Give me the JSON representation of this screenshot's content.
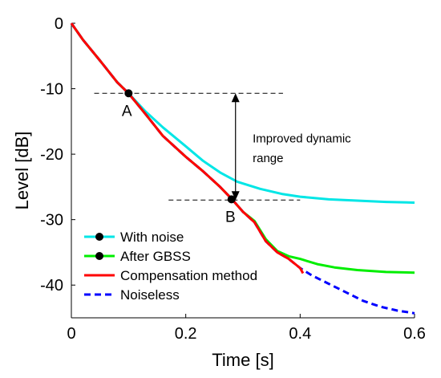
{
  "chart_data": {
    "type": "line",
    "xlabel": "Time [s]",
    "ylabel": "Level [dB]",
    "xlim": [
      0,
      0.6
    ],
    "ylim": [
      -45,
      0
    ],
    "xticks": [
      0,
      0.2,
      0.4,
      0.6
    ],
    "xtick_labels": [
      "0",
      "0.2",
      "0.4",
      "0.6"
    ],
    "yticks": [
      0,
      -10,
      -20,
      -30,
      -40
    ],
    "ytick_labels": [
      "0",
      "-10",
      "-20",
      "-30",
      "-40"
    ],
    "grid": false,
    "legend_position": "bottom-left",
    "series": [
      {
        "name": "With noise",
        "color": "#00e6e6",
        "style": "solid",
        "marker": "circle",
        "x": [
          0,
          0.02,
          0.05,
          0.08,
          0.1,
          0.13,
          0.16,
          0.2,
          0.23,
          0.26,
          0.29,
          0.33,
          0.37,
          0.4,
          0.45,
          0.5,
          0.55,
          0.6
        ],
        "y": [
          0,
          -2.5,
          -5.7,
          -9.0,
          -10.7,
          -13.5,
          -15.9,
          -18.8,
          -21.0,
          -22.8,
          -24.2,
          -25.3,
          -26.1,
          -26.5,
          -26.9,
          -27.1,
          -27.3,
          -27.4
        ]
      },
      {
        "name": "After GBSS",
        "color": "#00ee00",
        "style": "solid",
        "marker": "circle",
        "x": [
          0,
          0.02,
          0.05,
          0.08,
          0.1,
          0.13,
          0.16,
          0.2,
          0.23,
          0.26,
          0.28,
          0.3,
          0.32,
          0.34,
          0.36,
          0.38,
          0.4,
          0.43,
          0.46,
          0.5,
          0.55,
          0.6
        ],
        "y": [
          0,
          -2.5,
          -5.7,
          -9.0,
          -10.7,
          -13.9,
          -17.2,
          -20.4,
          -22.6,
          -25.0,
          -26.8,
          -28.8,
          -30.2,
          -33.0,
          -34.8,
          -35.6,
          -36.0,
          -36.8,
          -37.3,
          -37.7,
          -38.0,
          -38.1
        ]
      },
      {
        "name": "Compensation method",
        "color": "#ff0000",
        "style": "solid",
        "marker": "none",
        "x": [
          0,
          0.02,
          0.05,
          0.08,
          0.1,
          0.13,
          0.16,
          0.2,
          0.23,
          0.26,
          0.28,
          0.3,
          0.32,
          0.34,
          0.36,
          0.38,
          0.4,
          0.405
        ],
        "y": [
          0,
          -2.5,
          -5.7,
          -9.0,
          -10.7,
          -13.9,
          -17.2,
          -20.4,
          -22.6,
          -25.0,
          -26.8,
          -28.8,
          -30.4,
          -33.3,
          -35.0,
          -36.0,
          -37.4,
          -38.2
        ]
      },
      {
        "name": "Noiseless",
        "color": "#0000ff",
        "style": "dashed",
        "marker": "none",
        "x": [
          0,
          0.02,
          0.05,
          0.08,
          0.1,
          0.13,
          0.16,
          0.2,
          0.23,
          0.26,
          0.28,
          0.3,
          0.32,
          0.34,
          0.36,
          0.38,
          0.4,
          0.42,
          0.45,
          0.48,
          0.51,
          0.54,
          0.57,
          0.6
        ],
        "y": [
          0,
          -2.5,
          -5.7,
          -9.0,
          -10.7,
          -13.9,
          -17.2,
          -20.4,
          -22.6,
          -25.0,
          -26.8,
          -28.8,
          -30.4,
          -33.3,
          -35.0,
          -36.0,
          -37.4,
          -38.5,
          -39.8,
          -41.1,
          -42.4,
          -43.3,
          -43.9,
          -44.3
        ]
      }
    ],
    "reference_lines": [
      {
        "x_start": 0.04,
        "x_end": 0.37,
        "y": -10.7,
        "style": "dashed",
        "color": "#000000"
      },
      {
        "x_start": 0.17,
        "x_end": 0.4,
        "y": -27.0,
        "style": "dashed",
        "color": "#000000"
      }
    ],
    "points": [
      {
        "label": "A",
        "x": 0.1,
        "y": -10.7,
        "label_x": 0.097,
        "label_y": -13.4
      },
      {
        "label": "B",
        "x": 0.28,
        "y": -26.9,
        "label_x": 0.278,
        "label_y": -29.6
      }
    ],
    "arrow": {
      "x": 0.287,
      "y_from": -10.7,
      "y_to": -27.0,
      "double_headed": true
    },
    "annotation": {
      "lines": [
        "Improved dynamic",
        "range"
      ],
      "x": 0.317,
      "y": -17.6,
      "line_step": 3.0
    }
  }
}
